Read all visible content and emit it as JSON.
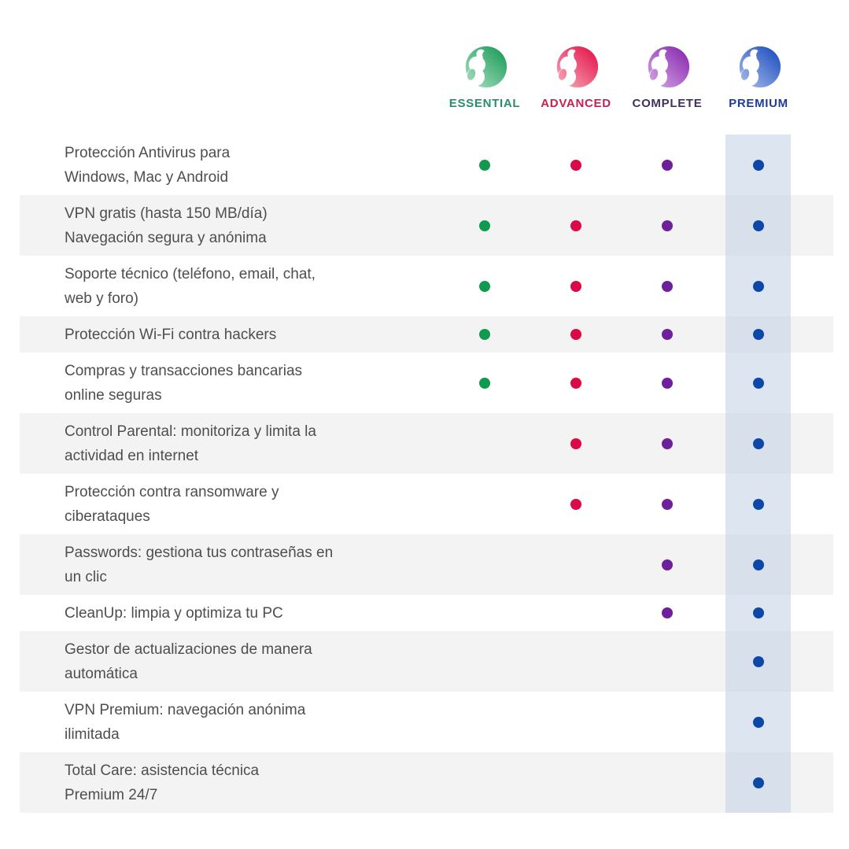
{
  "chart_data": {
    "type": "table",
    "title": "",
    "legend_position": "top",
    "columns": [
      {
        "id": "essential",
        "name": "ESSENTIAL",
        "label_color": "#2B8C69",
        "dot_color": "#0F9A4F",
        "logo": {
          "icon": "panda-logo",
          "light": "#A8DFC0",
          "dark": "#1F9D5B"
        },
        "highlighted": false
      },
      {
        "id": "advanced",
        "name": "ADVANCED",
        "label_color": "#C32353",
        "dot_color": "#DB0A46",
        "logo": {
          "icon": "panda-logo",
          "light": "#F7AABB",
          "dark": "#E4164B"
        },
        "highlighted": false
      },
      {
        "id": "complete",
        "name": "COMPLETE",
        "label_color": "#41305F",
        "dot_color": "#6E1F9B",
        "logo": {
          "icon": "panda-logo",
          "light": "#D5A6E6",
          "dark": "#8A2BB0"
        },
        "highlighted": false
      },
      {
        "id": "premium",
        "name": "PREMIUM",
        "label_color": "#1F3C96",
        "dot_color": "#0D47A8",
        "logo": {
          "icon": "panda-logo",
          "light": "#A6BCEA",
          "dark": "#2050C0"
        },
        "highlighted": true
      }
    ],
    "rows": [
      {
        "feature": "Protección Antivirus para\nWindows, Mac y Android",
        "included": [
          true,
          true,
          true,
          true
        ]
      },
      {
        "feature": "VPN gratis (hasta 150 MB/día)\nNavegación segura y anónima",
        "included": [
          true,
          true,
          true,
          true
        ]
      },
      {
        "feature": "Soporte técnico (teléfono, email, chat,\nweb y foro)",
        "included": [
          true,
          true,
          true,
          true
        ]
      },
      {
        "feature": "Protección Wi-Fi contra hackers",
        "included": [
          true,
          true,
          true,
          true
        ]
      },
      {
        "feature": "Compras y transacciones bancarias\nonline seguras",
        "included": [
          true,
          true,
          true,
          true
        ]
      },
      {
        "feature": "Control Parental: monitoriza y limita la\nactividad en internet",
        "included": [
          false,
          true,
          true,
          true
        ]
      },
      {
        "feature": "Protección contra ransomware y\nciberataques",
        "included": [
          false,
          true,
          true,
          true
        ]
      },
      {
        "feature": "Passwords: gestiona tus contraseñas en\nun clic",
        "included": [
          false,
          false,
          true,
          true
        ]
      },
      {
        "feature": "CleanUp: limpia y optimiza tu PC",
        "included": [
          false,
          false,
          true,
          true
        ]
      },
      {
        "feature": "Gestor de actualizaciones de manera\nautomática",
        "included": [
          false,
          false,
          false,
          true
        ]
      },
      {
        "feature": "VPN Premium: navegación anónima\nilimitada",
        "included": [
          false,
          false,
          false,
          true
        ]
      },
      {
        "feature": "Total Care: asistencia técnica\nPremium 24/7",
        "included": [
          false,
          false,
          false,
          true
        ]
      }
    ],
    "styles": {
      "stripe_color": "#F3F3F3",
      "highlight_color": "rgba(199,211,232,0.6)",
      "feature_text_color": "#4E4E4E",
      "background_color": "#FFFFFF"
    }
  }
}
